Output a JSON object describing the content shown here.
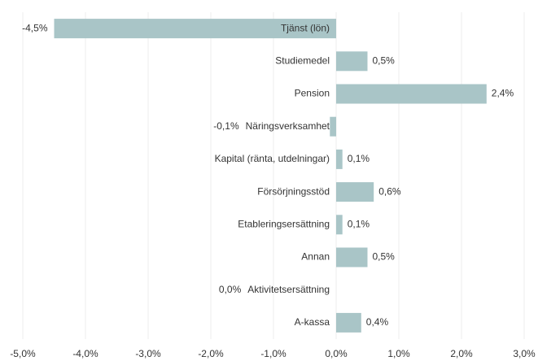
{
  "chart_data": {
    "type": "barh",
    "categories": [
      "Tjänst (lön)",
      "Studiemedel",
      "Pension",
      "Näringsverksamhet",
      "Kapital (ränta, utdelningar)",
      "Försörjningsstöd",
      "Etableringsersättning",
      "Annan",
      "Aktivitetsersättning",
      "A-kassa"
    ],
    "values": [
      -4.5,
      0.5,
      2.4,
      -0.1,
      0.1,
      0.6,
      0.1,
      0.5,
      0.0,
      0.4
    ],
    "value_labels": [
      "-4,5%",
      "0,5%",
      "2,4%",
      "-0,1%",
      "0,1%",
      "0,6%",
      "0,1%",
      "0,5%",
      "0,0%",
      "0,4%"
    ],
    "color": "#a9c5c7",
    "xlim": [
      -5,
      3
    ],
    "xticks": [
      {
        "value": -5,
        "label": "-5,0%"
      },
      {
        "value": -4,
        "label": "-4,0%"
      },
      {
        "value": -3,
        "label": "-3,0%"
      },
      {
        "value": -2,
        "label": "-2,0%"
      },
      {
        "value": -1,
        "label": "-1,0%"
      },
      {
        "value": 0,
        "label": "0,0%"
      },
      {
        "value": 1,
        "label": "1,0%"
      },
      {
        "value": 2,
        "label": "2,0%"
      },
      {
        "value": 3,
        "label": "3,0%"
      }
    ],
    "grid": true
  }
}
